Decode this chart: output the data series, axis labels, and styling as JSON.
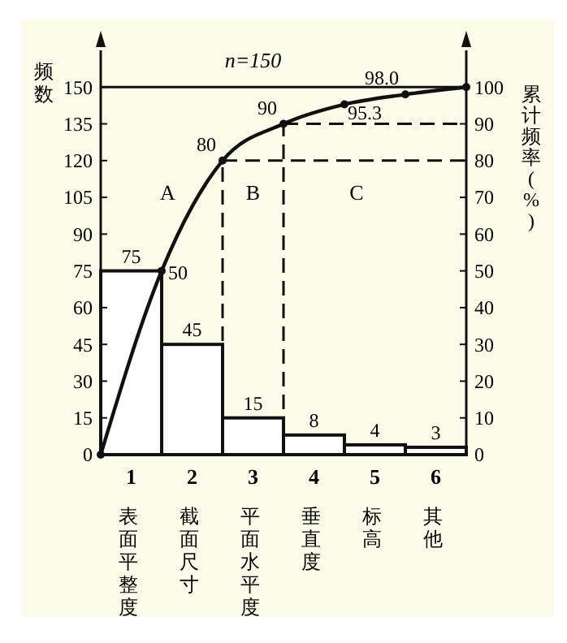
{
  "chart_data": {
    "type": "bar",
    "ylabel": "频数",
    "y2label": "累计频率(%)",
    "x": [
      0.5,
      1.5,
      2.5,
      3.5,
      4.5,
      5.5
    ],
    "xlim": [
      0,
      6
    ],
    "xticks": [
      {
        "value": 0.5,
        "label": "1"
      },
      {
        "value": 1.5,
        "label": "2"
      },
      {
        "value": 2.5,
        "label": "3"
      },
      {
        "value": 3.5,
        "label": "4"
      },
      {
        "value": 4.5,
        "label": "5"
      },
      {
        "value": 5.5,
        "label": "6"
      }
    ],
    "series": [
      {
        "color": "#ffffff",
        "values": [
          75,
          45,
          15,
          8,
          4,
          3
        ],
        "data_labels": true
      },
      {
        "type": "line",
        "axis": "y2",
        "color": "#111111",
        "x": [
          0,
          1,
          2,
          3,
          4,
          5,
          6
        ],
        "values": [
          0,
          50,
          80,
          90,
          95.3,
          98.0,
          100
        ],
        "value_labels": [
          null,
          "50",
          "80",
          "90",
          "95.3",
          "98.0",
          null
        ],
        "marker": "circle"
      }
    ],
    "ylim": [
      0,
      165
    ],
    "yticks": [
      0,
      15,
      30,
      45,
      60,
      75,
      90,
      105,
      120,
      135,
      150
    ],
    "y2lim": [
      0,
      110
    ],
    "y2ticks": [
      0,
      10,
      20,
      30,
      40,
      50,
      60,
      70,
      80,
      90,
      100
    ],
    "ref_lines": [
      {
        "axis": "y",
        "value": 150,
        "line_style": "solid"
      },
      {
        "axis": "y2",
        "value": 80,
        "line_style": "dashed"
      },
      {
        "axis": "y2",
        "value": 90,
        "line_style": "dashed"
      },
      {
        "axis": "x",
        "value": 2,
        "line_style": "dashed"
      },
      {
        "axis": "x",
        "value": 3,
        "line_style": "dashed"
      }
    ],
    "annotations": [
      "n=150",
      "A",
      "B",
      "C",
      "表面平整度",
      "截面尺寸",
      "平面水平度",
      "垂直度",
      "标高",
      "其他"
    ]
  }
}
